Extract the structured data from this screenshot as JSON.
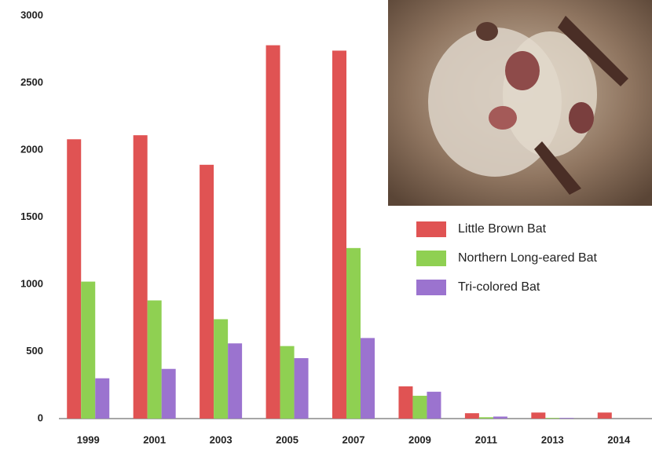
{
  "chart_data": {
    "type": "bar",
    "categories": [
      "1999",
      "2001",
      "2003",
      "2005",
      "2007",
      "2009",
      "2011",
      "2013",
      "2014"
    ],
    "series": [
      {
        "name": "Little Brown Bat",
        "color": "#e05353",
        "values": [
          2080,
          2110,
          1890,
          2780,
          2740,
          240,
          40,
          45,
          45
        ]
      },
      {
        "name": "Northern Long-eared Bat",
        "color": "#8fd052",
        "values": [
          1020,
          880,
          740,
          540,
          1270,
          170,
          10,
          5,
          0
        ]
      },
      {
        "name": "Tri-colored Bat",
        "color": "#9b73cf",
        "values": [
          300,
          370,
          560,
          450,
          600,
          200,
          15,
          5,
          0
        ]
      }
    ],
    "ylim": [
      0,
      3000
    ],
    "yticks": [
      0,
      500,
      1000,
      1500,
      2000,
      2500,
      3000
    ],
    "grid": false
  }
}
